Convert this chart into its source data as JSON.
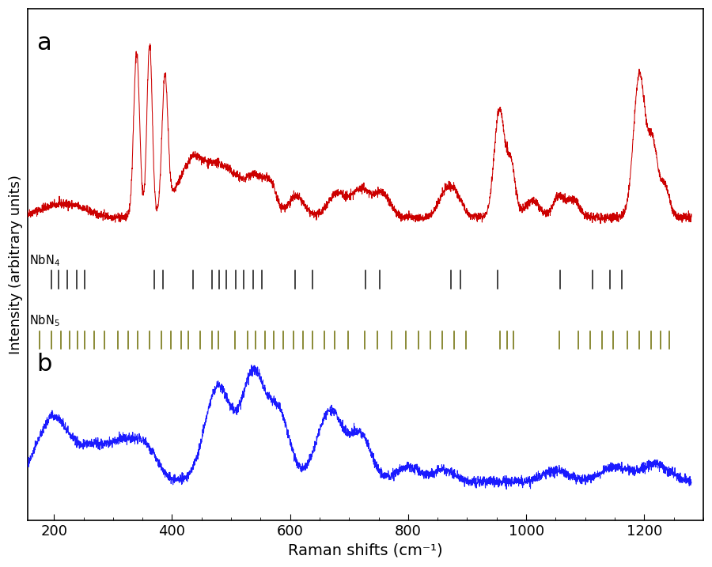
{
  "x_min": 150,
  "x_max": 1280,
  "xlabel": "Raman shifts (cm⁻¹)",
  "ylabel": "Intensity (arbitrary units)",
  "label_a": "a",
  "label_b": "b",
  "line_color_a": "#cc0000",
  "line_color_b": "#1a1aff",
  "nbn4_color": "#111111",
  "nbn5_color": "#6b6b00",
  "nbn4_peaks": [
    196,
    208,
    222,
    238,
    252,
    370,
    385,
    435,
    468,
    480,
    492,
    508,
    522,
    538,
    552,
    608,
    638,
    728,
    752,
    872,
    888,
    952,
    1058,
    1112,
    1142,
    1162
  ],
  "nbn5_peaks": [
    176,
    196,
    212,
    226,
    240,
    252,
    268,
    286,
    308,
    326,
    342,
    362,
    382,
    398,
    416,
    428,
    448,
    468,
    478,
    506,
    528,
    542,
    558,
    572,
    588,
    606,
    622,
    638,
    658,
    676,
    698,
    726,
    748,
    772,
    796,
    818,
    838,
    858,
    878,
    898,
    956,
    968,
    978,
    1056,
    1088,
    1108,
    1128,
    1148,
    1172,
    1192,
    1212,
    1228,
    1242
  ],
  "background_color": "#ffffff"
}
